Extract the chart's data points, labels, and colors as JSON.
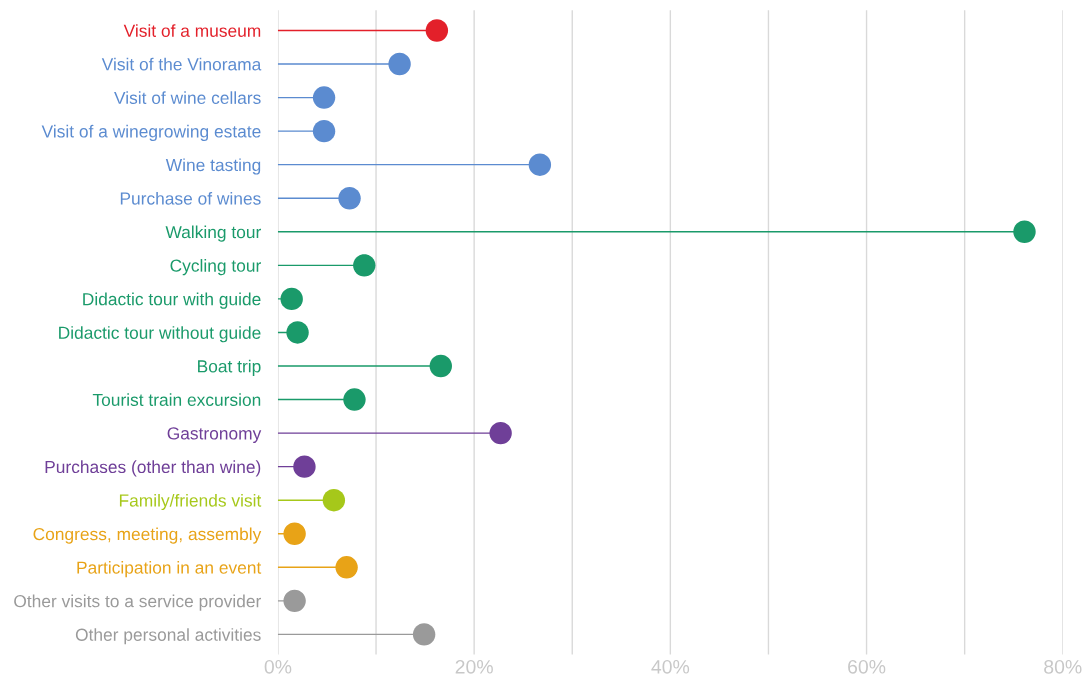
{
  "chart_data": {
    "type": "lollipop",
    "orientation": "horizontal",
    "categories": [
      "Visit of a museum",
      "Visit of the Vinorama",
      "Visit of wine cellars",
      "Visit of a winegrowing estate",
      "Wine tasting",
      "Purchase of wines",
      "Walking tour",
      "Cycling tour",
      "Didactic tour with guide",
      "Didactic tour without guide",
      "Boat trip",
      "Tourist train excursion",
      "Gastronomy",
      "Purchases (other than wine)",
      "Family/friends visit",
      "Congress, meeting, assembly",
      "Participation in an event",
      "Other visits to a service provider",
      "Other personal activities"
    ],
    "values": [
      16.2,
      12.4,
      4.7,
      4.7,
      26.7,
      7.3,
      76.1,
      8.8,
      1.4,
      2.0,
      16.6,
      7.8,
      22.7,
      2.7,
      5.7,
      1.7,
      7.0,
      1.7,
      14.9
    ],
    "colors": [
      "#e3202a",
      "#5b8bd0",
      "#5b8bd0",
      "#5b8bd0",
      "#5b8bd0",
      "#5b8bd0",
      "#1a9a6a",
      "#1a9a6a",
      "#1a9a6a",
      "#1a9a6a",
      "#1a9a6a",
      "#1a9a6a",
      "#6f3f98",
      "#6f3f98",
      "#a6c81a",
      "#e8a317",
      "#e8a317",
      "#9a9a9a",
      "#9a9a9a"
    ],
    "xlim": [
      0,
      80
    ],
    "xticks": [
      {
        "value": 0,
        "label": "0%"
      },
      {
        "value": 10,
        "label": null
      },
      {
        "value": 20,
        "label": "20%"
      },
      {
        "value": 30,
        "label": null
      },
      {
        "value": 40,
        "label": "40%"
      },
      {
        "value": 50,
        "label": null
      },
      {
        "value": 60,
        "label": "60%"
      },
      {
        "value": 70,
        "label": null
      },
      {
        "value": 80,
        "label": "80%"
      }
    ],
    "grid": "x",
    "marker": "circle"
  }
}
